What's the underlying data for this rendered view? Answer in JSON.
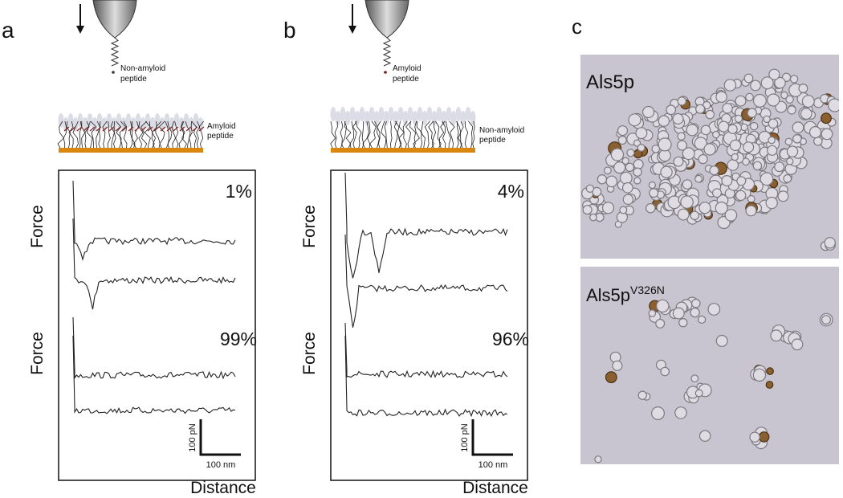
{
  "panels": [
    {
      "label": "a",
      "probe_label": [
        "Non-amyloid",
        "peptide"
      ],
      "surface_label": [
        "Amyloid",
        "peptide"
      ],
      "percent_top": "1%",
      "percent_bottom": "99%",
      "y_label_top": "Force",
      "y_label_bottom": "Force",
      "scale_y": "100 pN",
      "scale_x": "100 nm",
      "x_label": "Distance"
    },
    {
      "label": "b",
      "probe_label": [
        "Amyloid",
        "peptide"
      ],
      "surface_label": [
        "Non-amyloid",
        "peptide"
      ],
      "percent_top": "4%",
      "percent_bottom": "96%",
      "y_label_top": "Force",
      "y_label_bottom": "Force",
      "scale_y": "100 pN",
      "scale_x": "100 nm",
      "x_label": "Distance"
    }
  ],
  "panel_c": {
    "label": "c",
    "images": [
      {
        "label": "Als5p"
      },
      {
        "label": "Als5p",
        "superscript": "V326N"
      }
    ]
  }
}
